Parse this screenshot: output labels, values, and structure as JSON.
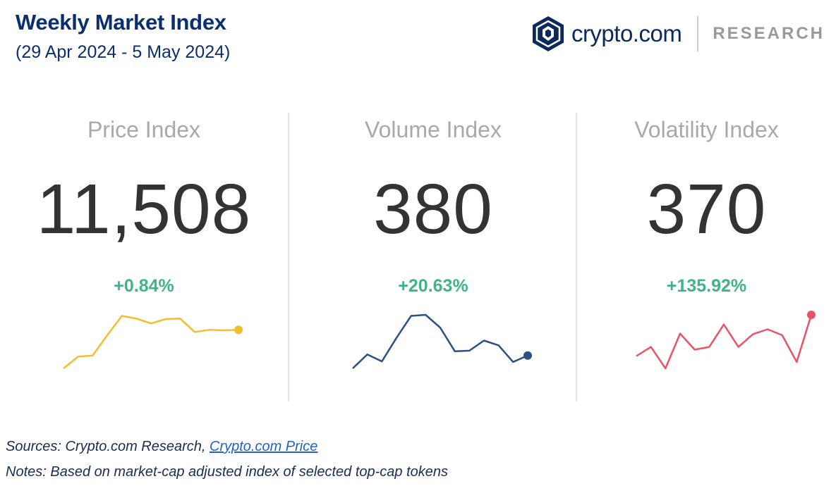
{
  "header": {
    "title": "Weekly Market Index",
    "date_range": "(29 Apr 2024 - 5 May 2024)",
    "brand_name": "crypto.com",
    "brand_section": "RESEARCH",
    "brand_color": "#0b2a5b"
  },
  "chart_data": [
    {
      "type": "line",
      "label": "Price Index",
      "value": "11,508",
      "change": "+0.84%",
      "color": "#f5bd2b",
      "x": [
        0,
        1,
        2,
        3,
        4,
        5,
        6,
        7,
        8,
        9,
        10,
        11,
        12
      ],
      "values": [
        0,
        0.22,
        0.24,
        0.62,
        0.98,
        0.93,
        0.84,
        0.92,
        0.93,
        0.68,
        0.72,
        0.71,
        0.72
      ]
    },
    {
      "type": "line",
      "label": "Volume Index",
      "value": "380",
      "change": "+20.63%",
      "color": "#2d4f86",
      "x": [
        0,
        1,
        2,
        3,
        4,
        5,
        6,
        7,
        8,
        9,
        10,
        11,
        12
      ],
      "values": [
        0,
        0.26,
        0.13,
        0.57,
        0.98,
        1.0,
        0.76,
        0.32,
        0.33,
        0.52,
        0.43,
        0.12,
        0.24
      ]
    },
    {
      "type": "line",
      "label": "Volatility Index",
      "value": "370",
      "change": "+135.92%",
      "color": "#e85466",
      "x": [
        0,
        1,
        2,
        3,
        4,
        5,
        6,
        7,
        8,
        9,
        10,
        11,
        12
      ],
      "values": [
        0.23,
        0.4,
        0.0,
        0.65,
        0.35,
        0.4,
        0.82,
        0.4,
        0.64,
        0.73,
        0.62,
        0.12,
        1.0
      ]
    }
  ],
  "footer": {
    "sources_prefix": "Sources: Crypto.com Research, ",
    "sources_link": "Crypto.com Price",
    "notes": "Notes: Based on market-cap adjusted index of selected top-cap tokens"
  }
}
